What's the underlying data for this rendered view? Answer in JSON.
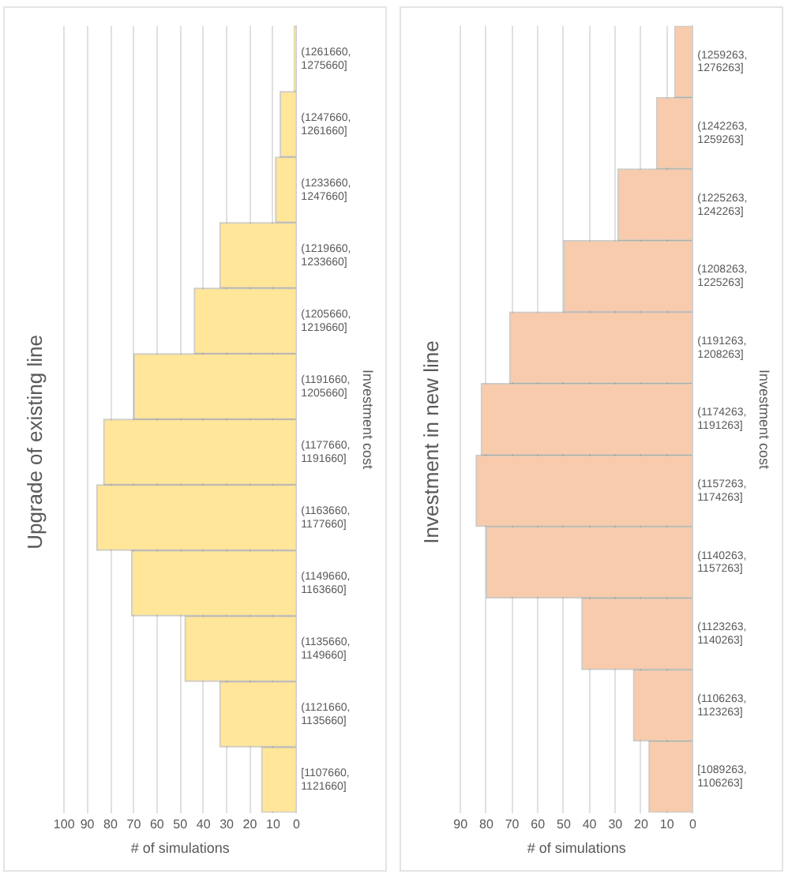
{
  "chart_data": [
    {
      "type": "bar",
      "orientation": "horizontal",
      "title": "Upgrade of existing line",
      "ylabel": "Investment cost",
      "xlabel": "# of simulations",
      "categories": [
        "(1261660, 1275660]",
        "(1247660, 1261660]",
        "(1233660, 1247660]",
        "(1219660, 1233660]",
        "(1205660, 1219660]",
        "(1191660, 1205660]",
        "(1177660, 1191660]",
        "(1163660, 1177660]",
        "(1149660, 1163660]",
        "(1135660, 1149660]",
        "(1121660, 1135660]",
        "[1107660, 1121660]"
      ],
      "values": [
        1,
        7,
        9,
        33,
        44,
        70,
        83,
        86,
        71,
        48,
        33,
        15
      ],
      "color": "#ffe699",
      "xlim": [
        100,
        0
      ],
      "xticks": [
        0,
        10,
        20,
        30,
        40,
        50,
        60,
        70,
        80,
        90,
        100
      ],
      "grid": "x"
    },
    {
      "type": "bar",
      "orientation": "horizontal",
      "title": "Investment in new line",
      "ylabel": "Investment cost",
      "xlabel": "# of simulations",
      "categories": [
        "(1259263, 1276263]",
        "(1242263, 1259263]",
        "(1225263, 1242263]",
        "(1208263, 1225263]",
        "(1191263, 1208263]",
        "(1174263, 1191263]",
        "(1157263, 1174263]",
        "(1140263, 1157263]",
        "(1123263, 1140263]",
        "(1106263, 1123263]",
        "[1089263, 1106263]"
      ],
      "values": [
        7,
        14,
        29,
        50,
        71,
        82,
        84,
        80,
        43,
        23,
        17
      ],
      "color": "#f8cbad",
      "xlim": [
        90,
        0
      ],
      "xticks": [
        0,
        10,
        20,
        30,
        40,
        50,
        60,
        70,
        80,
        90
      ],
      "grid": "x"
    }
  ]
}
